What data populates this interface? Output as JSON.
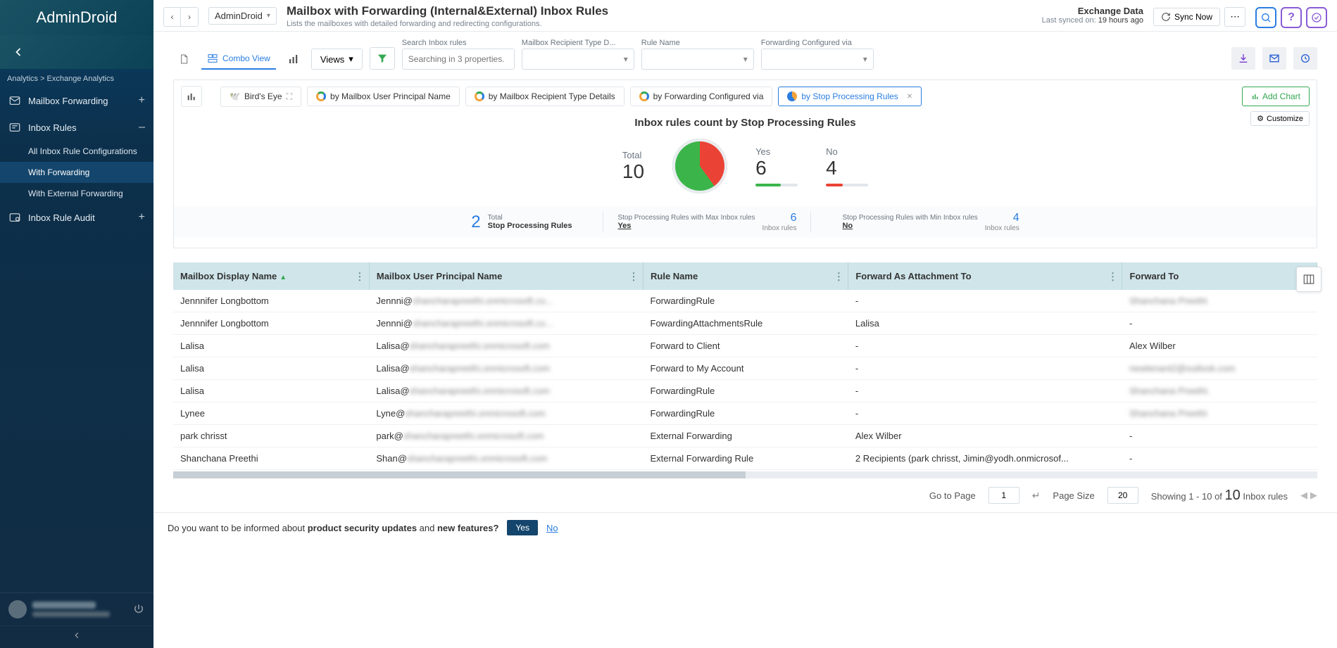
{
  "app": {
    "name": "AdminDroid"
  },
  "breadcrumb": "Analytics > Exchange Analytics",
  "sidebar": {
    "items": [
      {
        "label": "Mailbox Forwarding",
        "toggle": "+"
      },
      {
        "label": "Inbox Rules",
        "toggle": "–"
      },
      {
        "label": "Inbox Rule Audit",
        "toggle": "+"
      }
    ],
    "sub": [
      {
        "label": "All Inbox Rule Configurations"
      },
      {
        "label": "With Forwarding"
      },
      {
        "label": "With External Forwarding"
      }
    ]
  },
  "top": {
    "crumb": "AdminDroid",
    "title": "Mailbox with Forwarding (Internal&External) Inbox Rules",
    "subtitle": "Lists the mailboxes with detailed forwarding and redirecting configurations.",
    "sync_title": "Exchange Data",
    "sync_label": "Last synced on:",
    "sync_value": "19 hours ago",
    "sync_now": "Sync Now"
  },
  "toolbar": {
    "combo": "Combo View",
    "views": "Views",
    "search_label": "Search Inbox rules",
    "search_placeholder": "Searching in 3 properties.",
    "filters": [
      {
        "label": "Mailbox Recipient Type D..."
      },
      {
        "label": "Rule Name"
      },
      {
        "label": "Forwarding Configured via"
      }
    ]
  },
  "chart": {
    "tabs": {
      "birds_eye": "Bird's Eye",
      "t1": "by Mailbox User Principal Name",
      "t2": "by Mailbox Recipient Type Details",
      "t3": "by Forwarding Configured via",
      "t4": "by Stop Processing Rules"
    },
    "add": "Add Chart",
    "customize": "Customize",
    "title": "Inbox rules count by Stop Processing Rules",
    "total_label": "Total",
    "total_value": "10",
    "yes_label": "Yes",
    "yes_value": "6",
    "no_label": "No",
    "no_value": "4",
    "pie": {
      "yes_pct": 60,
      "no_pct": 40,
      "yes_color": "#3bb54a",
      "no_color": "#ea4335",
      "bg": "#e9edf1"
    },
    "stats": {
      "count": "2",
      "count_top": "Total",
      "count_bottom": "Stop Processing Rules",
      "max_top": "Stop Processing Rules with Max Inbox rules",
      "max_bottom": "Yes",
      "max_val": "6",
      "max_unit": "Inbox rules",
      "min_top": "Stop Processing Rules with Min Inbox rules",
      "min_bottom": "No",
      "min_val": "4",
      "min_unit": "Inbox rules"
    }
  },
  "table": {
    "columns": [
      "Mailbox Display Name",
      "Mailbox User Principal Name",
      "Rule Name",
      "Forward As Attachment To",
      "Forward To"
    ],
    "rows": [
      {
        "c0": "Jennnifer Longbottom",
        "c1a": "Jennni@",
        "c1b": "shancharapreethi.onmicrosoft.co...",
        "c2": "ForwardingRule",
        "c3": "-",
        "c4a": "",
        "c4b": "Shanchana Preethi"
      },
      {
        "c0": "Jennnifer Longbottom",
        "c1a": "Jennni@",
        "c1b": "shancharapreethi.onmicrosoft.co...",
        "c2": "FowardingAttachmentsRule",
        "c3": "Lalisa",
        "c4a": "-",
        "c4b": ""
      },
      {
        "c0": "Lalisa",
        "c1a": "Lalisa@",
        "c1b": "shancharapreethi.onmicrosoft.com",
        "c2": "Forward to Client",
        "c3": "-",
        "c4a": "Alex Wilber",
        "c4b": ""
      },
      {
        "c0": "Lalisa",
        "c1a": "Lalisa@",
        "c1b": "shancharapreethi.onmicrosoft.com",
        "c2": "Forward to My Account",
        "c3": "-",
        "c4a": "",
        "c4b": "newtenant2@outlook.com"
      },
      {
        "c0": "Lalisa",
        "c1a": "Lalisa@",
        "c1b": "shancharapreethi.onmicrosoft.com",
        "c2": "ForwardingRule",
        "c3": "-",
        "c4a": "",
        "c4b": "Shanchana Preethi."
      },
      {
        "c0": "Lynee",
        "c1a": "Lyne@",
        "c1b": "shancharapreethi.onmicrosoft.com",
        "c2": "ForwardingRule",
        "c3": "-",
        "c4a": "",
        "c4b": "Shanchana Preethi"
      },
      {
        "c0": "park chrisst",
        "c1a": "park@",
        "c1b": "shancharapreethi.onmicrosoft.com",
        "c2": "External Forwarding",
        "c3": "Alex Wilber",
        "c4a": "-",
        "c4b": ""
      },
      {
        "c0": "Shanchana Preethi",
        "c1a": "Shan@",
        "c1b": "shancharapreethi.onmicrosoft.com",
        "c2": "External Forwarding Rule",
        "c3": "2 Recipients (park chrisst, Jimin@yodh.onmicrosof...",
        "c4a": "-",
        "c4b": ""
      }
    ]
  },
  "pager": {
    "goto_label": "Go to Page",
    "goto_value": "1",
    "size_label": "Page Size",
    "size_value": "20",
    "showing_prefix": "Showing",
    "showing_range": "1 - 10",
    "showing_of": "of",
    "showing_total": "10",
    "showing_suffix": "Inbox rules"
  },
  "footer": {
    "text1": "Do you want to be informed about ",
    "bold1": "product security updates",
    "text2": " and ",
    "bold2": "new features?",
    "yes": "Yes",
    "no": "No"
  }
}
